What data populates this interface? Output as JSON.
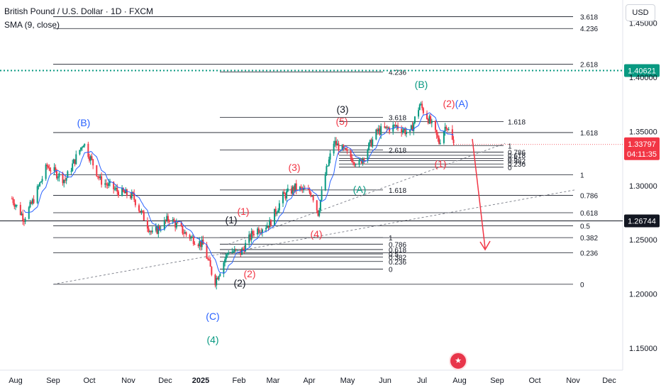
{
  "header": {
    "title": "British Pound / U.S. Dollar · 1D · FXCM",
    "indicator": "SMA (9, close)",
    "currency_button": "USD"
  },
  "colors": {
    "up": "#089981",
    "down": "#f23645",
    "sma": "#2962ff",
    "wave_red": "#f23645",
    "wave_green": "#089981",
    "wave_blue": "#2962ff",
    "wave_black": "#131722",
    "dotted_level": "#089981",
    "arrow": "#f23645"
  },
  "chart_data": {
    "type": "candlestick",
    "title": "British Pound / U.S. Dollar · 1D · FXCM",
    "y_range": [
      1.14,
      1.425
    ],
    "y_ticks": [
      "1.15000",
      "1.20000",
      "1.25000",
      "1.30000",
      "1.35000",
      "1.40000"
    ],
    "x_labels": [
      "Aug",
      "Sep",
      "Oct",
      "Nov",
      "Dec",
      "2025",
      "Feb",
      "Mar",
      "Apr",
      "May",
      "Jun",
      "Jul",
      "Aug",
      "Sep",
      "Oct",
      "Nov",
      "Dec"
    ],
    "price_path": [
      [
        "2024-07-29",
        1.288
      ],
      [
        "2024-08-08",
        1.27
      ],
      [
        "2024-08-15",
        1.285
      ],
      [
        "2024-08-27",
        1.318
      ],
      [
        "2024-09-11",
        1.305
      ],
      [
        "2024-09-26",
        1.34
      ],
      [
        "2024-10-10",
        1.305
      ],
      [
        "2024-10-24",
        1.295
      ],
      [
        "2024-11-06",
        1.29
      ],
      [
        "2024-11-22",
        1.255
      ],
      [
        "2024-12-06",
        1.27
      ],
      [
        "2024-12-20",
        1.255
      ],
      [
        "2025-01-03",
        1.245
      ],
      [
        "2025-01-10",
        1.22
      ],
      [
        "2025-01-13",
        1.212
      ],
      [
        "2025-01-24",
        1.24
      ],
      [
        "2025-02-03",
        1.238
      ],
      [
        "2025-02-14",
        1.258
      ],
      [
        "2025-02-27",
        1.265
      ],
      [
        "2025-03-10",
        1.29
      ],
      [
        "2025-03-20",
        1.298
      ],
      [
        "2025-04-03",
        1.293
      ],
      [
        "2025-04-08",
        1.275
      ],
      [
        "2025-04-14",
        1.31
      ],
      [
        "2025-04-21",
        1.34
      ],
      [
        "2025-05-01",
        1.33
      ],
      [
        "2025-05-12",
        1.32
      ],
      [
        "2025-05-27",
        1.35
      ],
      [
        "2025-06-12",
        1.355
      ],
      [
        "2025-06-23",
        1.348
      ],
      [
        "2025-07-01",
        1.375
      ],
      [
        "2025-07-10",
        1.358
      ],
      [
        "2025-07-17",
        1.34
      ],
      [
        "2025-07-23",
        1.357
      ],
      [
        "2025-07-29",
        1.338
      ]
    ],
    "current_price": {
      "value": 1.33797,
      "label": "1.33797",
      "countdown": "04:11:35"
    },
    "horizontal_levels": [
      {
        "value": 1.40621,
        "label": "1.40621",
        "style": "dotted"
      },
      {
        "value": 1.26744,
        "label": "1.26744",
        "style": "solid"
      }
    ],
    "fib_sets": [
      {
        "name": "fib-set-major",
        "labels": [
          "0",
          "0.236",
          "0.382",
          "0.5",
          "0.618",
          "0.786",
          "1",
          "1.618",
          "2.618",
          "3.618",
          "4.236"
        ],
        "values": [
          1.209,
          1.238,
          1.252,
          1.263,
          1.275,
          1.291,
          1.31,
          1.349,
          1.412,
          1.456,
          1.445
        ]
      },
      {
        "name": "fib-set-middle",
        "labels": [
          "0",
          "0.236",
          "0.382",
          "0.5",
          "0.618",
          "0.786",
          "1",
          "1.618",
          "2.618",
          "3.618",
          "4.236"
        ],
        "values": [
          1.223,
          1.23,
          1.234,
          1.237,
          1.241,
          1.246,
          1.252,
          1.296,
          1.333,
          1.363,
          1.405
        ]
      },
      {
        "name": "fib-set-top",
        "labels": [
          "0",
          "0.236",
          "0.382",
          "0.5",
          "0.618",
          "0.786",
          "1",
          "1.618"
        ],
        "values": [
          1.317,
          1.32,
          1.323,
          1.325,
          1.328,
          1.331,
          1.337,
          1.359
        ]
      }
    ],
    "wave_labels": [
      {
        "text": "(B)",
        "color": "blue"
      },
      {
        "text": "(C)",
        "color": "blue"
      },
      {
        "text": "(4)",
        "color": "green"
      },
      {
        "text": "(1)",
        "color": "black"
      },
      {
        "text": "(2)",
        "color": "black"
      },
      {
        "text": "(1)",
        "color": "red"
      },
      {
        "text": "(2)",
        "color": "red"
      },
      {
        "text": "(3)",
        "color": "red"
      },
      {
        "text": "(4)",
        "color": "red"
      },
      {
        "text": "(5)",
        "color": "red"
      },
      {
        "text": "(3)",
        "color": "black"
      },
      {
        "text": "(A)",
        "color": "green"
      },
      {
        "text": "(B)",
        "color": "green"
      },
      {
        "text": "(2)",
        "color": "red"
      },
      {
        "text": "(A)",
        "color": "blue"
      },
      {
        "text": "(1)",
        "color": "red"
      }
    ],
    "grid": false,
    "legend": "none"
  }
}
